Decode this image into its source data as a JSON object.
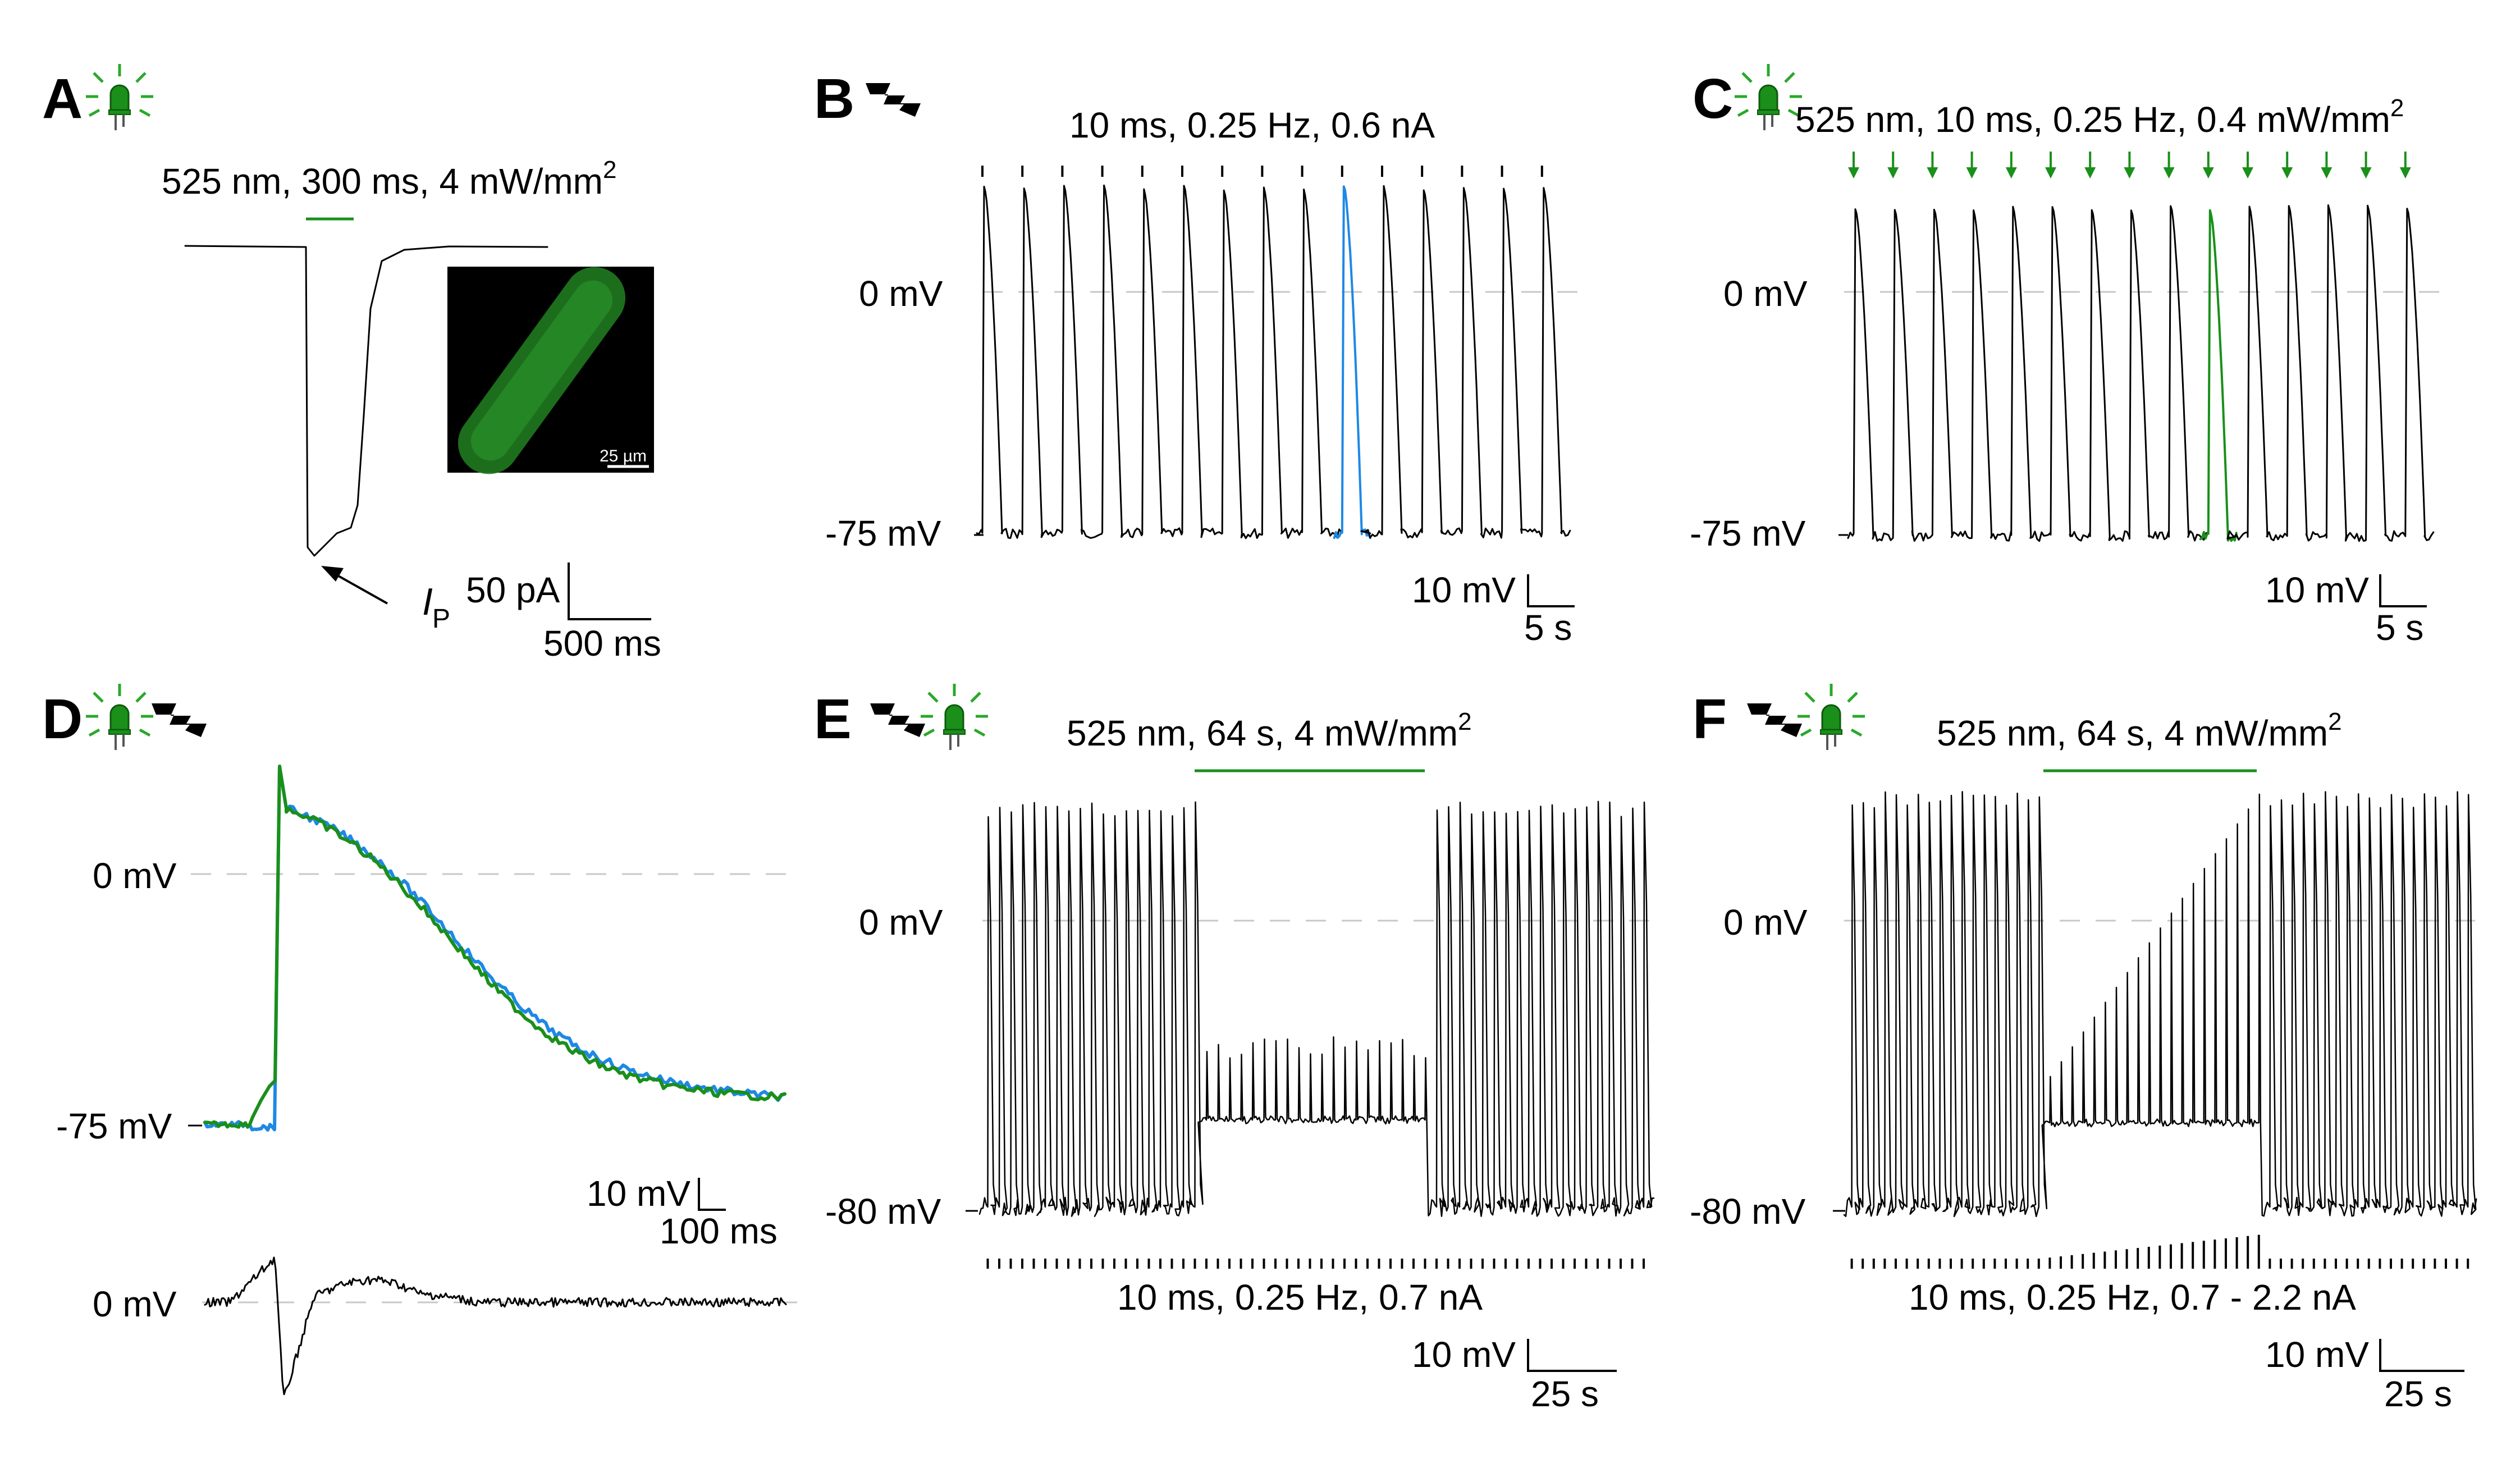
{
  "colors": {
    "trace": "#000000",
    "electrical": "#1e88e5",
    "optical": "#1a8f1a",
    "light_bar": "#1a8f1a",
    "zero_line": "#c8c8c8",
    "inset_bg": "#000000",
    "inset_cell": "#1f7a1f"
  },
  "icons": {
    "led": "green-led-icon",
    "bolt": "lightning-bolt-icon"
  },
  "panels": {
    "A": {
      "letter": "A",
      "stimulus": "525 nm, 300 ms, 4 mW/mm",
      "stimulus_sup": "2",
      "current_label": "I",
      "current_sub": "P",
      "scale_y": "50 pA",
      "scale_x": "500 ms",
      "inset_scale": "25 µm"
    },
    "B": {
      "letter": "B",
      "stimulus": "10 ms, 0.25 Hz, 0.6 nA",
      "zero_label": "0 mV",
      "rest_label": "-75 mV",
      "scale_y": "10 mV",
      "scale_x": "5 s",
      "n_beats": 15,
      "highlight_beat": 10
    },
    "C": {
      "letter": "C",
      "stimulus": "525 nm, 10 ms, 0.25 Hz, 0.4 mW/mm",
      "stimulus_sup": "2",
      "zero_label": "0 mV",
      "rest_label": "-75 mV",
      "scale_y": "10 mV",
      "scale_x": "5 s",
      "n_beats": 15,
      "highlight_beat": 10
    },
    "D": {
      "letter": "D",
      "zero_label": "0 mV",
      "rest_label": "-75 mV",
      "scale_y": "10 mV",
      "scale_x": "100 ms",
      "diff_zero_label": "0 mV"
    },
    "E": {
      "letter": "E",
      "light": "525 nm, 64 s, 4 mW/mm",
      "light_sup": "2",
      "zero_label": "0 mV",
      "rest_label": "-80 mV",
      "stimulus": "10 ms, 0.25 Hz, 0.7 nA",
      "scale_y": "10 mV",
      "scale_x": "25 s"
    },
    "F": {
      "letter": "F",
      "light": "525 nm, 64 s, 4 mW/mm",
      "light_sup": "2",
      "zero_label": "0 mV",
      "rest_label": "-80 mV",
      "stimulus": "10 ms, 0.25 Hz, 0.7 - 2.2 nA",
      "scale_y": "10 mV",
      "scale_x": "25 s"
    }
  }
}
